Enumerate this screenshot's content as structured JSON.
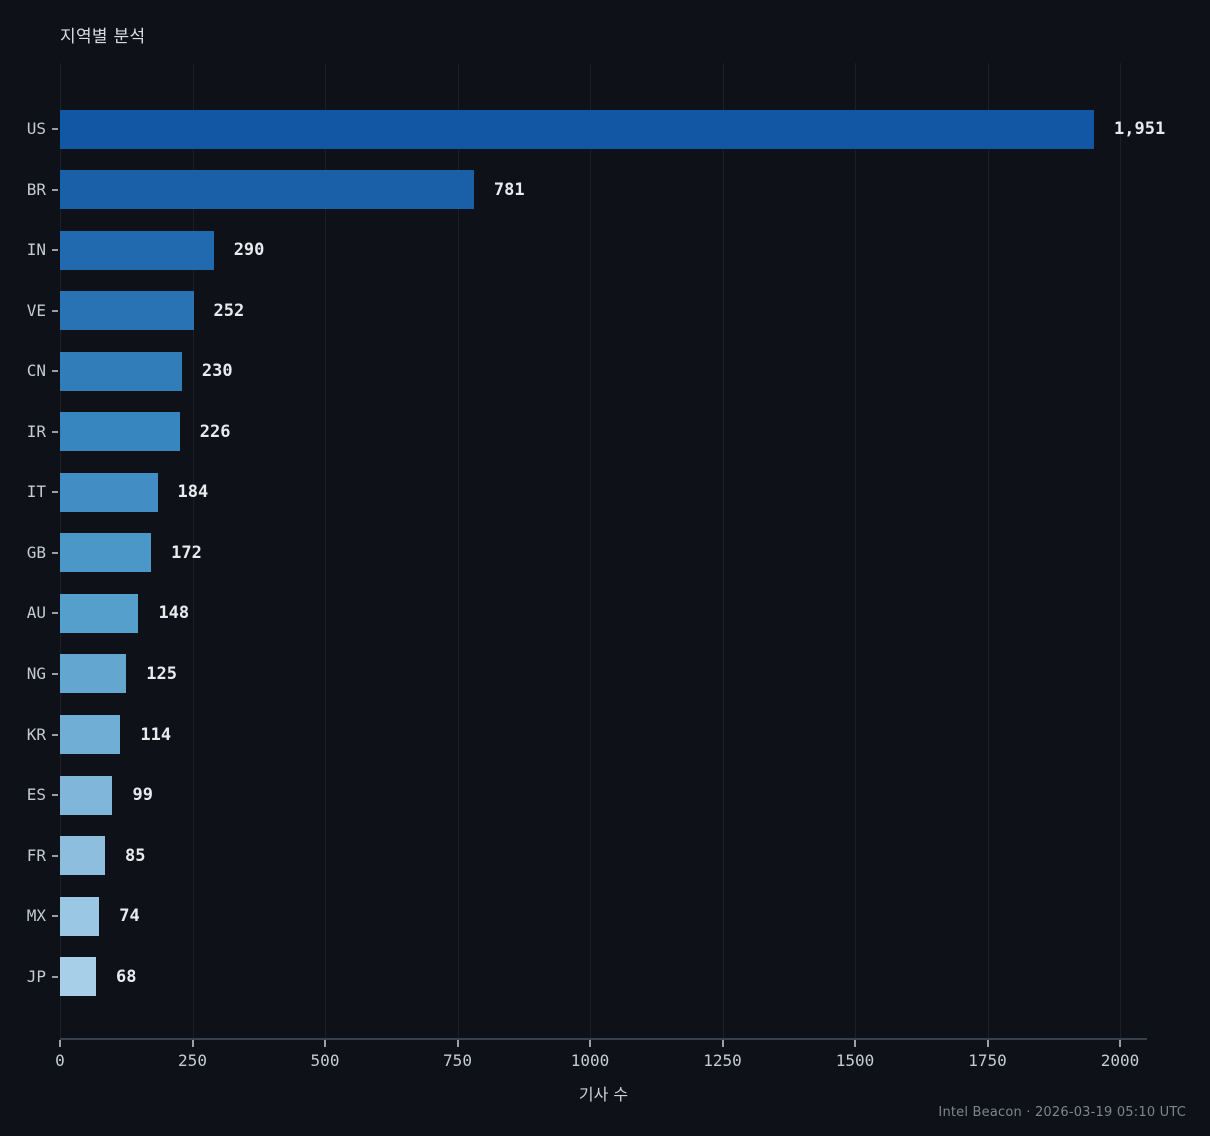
{
  "title": "지역별 분석",
  "footer": "Intel Beacon · 2026-03-19 05:10 UTC",
  "chart_data": {
    "type": "bar",
    "orientation": "horizontal",
    "title": "지역별 분석",
    "xlabel": "기사 수",
    "ylabel": "",
    "categories": [
      "US",
      "BR",
      "IN",
      "VE",
      "CN",
      "IR",
      "IT",
      "GB",
      "AU",
      "NG",
      "KR",
      "ES",
      "FR",
      "MX",
      "JP"
    ],
    "values": [
      1951,
      781,
      290,
      252,
      230,
      226,
      184,
      172,
      148,
      125,
      114,
      99,
      85,
      74,
      68
    ],
    "value_labels": [
      "1,951",
      "781",
      "290",
      "252",
      "230",
      "226",
      "184",
      "172",
      "148",
      "125",
      "114",
      "99",
      "85",
      "74",
      "68"
    ],
    "bar_colors": [
      "#1257a3",
      "#1a60a9",
      "#216aaf",
      "#2973b4",
      "#307dba",
      "#3886c0",
      "#428ec4",
      "#4b97c8",
      "#559fcc",
      "#63a7d0",
      "#71aed5",
      "#7fb6d9",
      "#8dbede",
      "#9ac7e3",
      "#a8cfe8"
    ],
    "x_ticks": [
      0,
      250,
      500,
      750,
      1000,
      1250,
      1500,
      1750,
      2000
    ],
    "x_tick_labels": [
      "0",
      "250",
      "500",
      "750",
      "1000",
      "1250",
      "1500",
      "1750",
      "2000"
    ],
    "xlim": [
      0,
      2051
    ],
    "grid": true,
    "legend": false,
    "colors": {
      "background": "#0e1117",
      "grid": "#1a202a",
      "axis": "#39404a",
      "tick": "#9aa0a8",
      "tick_label": "#c6ccd3",
      "category_label": "#c5cbd2",
      "value_label": "#e8eaed",
      "title": "#d9dde2",
      "footer": "#7d8590"
    }
  }
}
